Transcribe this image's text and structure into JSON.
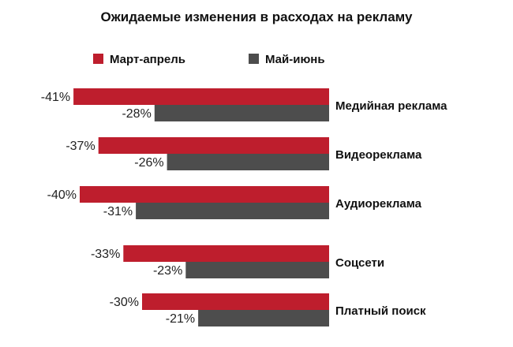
{
  "chart_data": {
    "type": "bar",
    "orientation": "horizontal",
    "title": "Ожидаемые изменения в расходах на рекламу",
    "categories": [
      "Медийная реклама",
      "Видеореклама",
      "Аудиореклама",
      "Соцсети",
      "Платный поиск"
    ],
    "series": [
      {
        "name": "Март-апрель",
        "color": "#be1e2d",
        "values": [
          -41,
          -37,
          -40,
          -33,
          -30
        ],
        "labels": [
          "-41%",
          "-37%",
          "-40%",
          "-33%",
          "-30%"
        ]
      },
      {
        "name": "Май-июнь",
        "color": "#4d4d4d",
        "values": [
          -28,
          -26,
          -31,
          -23,
          -21
        ],
        "labels": [
          "-28%",
          "-26%",
          "-31%",
          "-23%",
          "-21%"
        ]
      }
    ],
    "legend": "top-left",
    "grid": false,
    "xlim": [
      -45,
      0
    ]
  }
}
